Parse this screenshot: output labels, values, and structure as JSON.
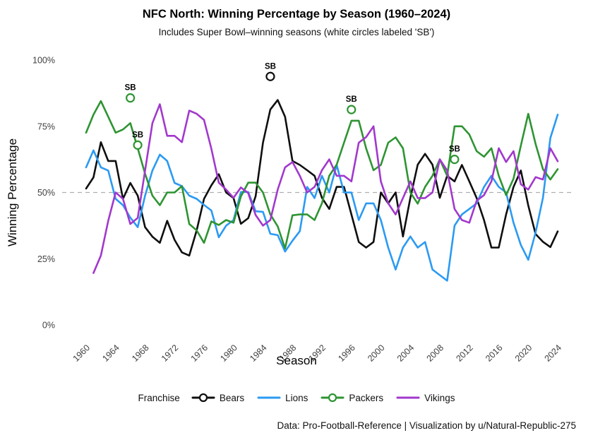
{
  "header": {
    "title": "NFC North: Winning Percentage by Season (1960–2024)",
    "subtitle": "Includes Super Bowl–winning seasons (white circles labeled 'SB')"
  },
  "axes": {
    "y_label": "Winning Percentage",
    "x_label": "Season",
    "y_ticks": [
      {
        "label": "0%",
        "value": 0
      },
      {
        "label": "25%",
        "value": 25
      },
      {
        "label": "50%",
        "value": 50
      },
      {
        "label": "75%",
        "value": 75
      },
      {
        "label": "100%",
        "value": 100
      }
    ],
    "x_ticks": [
      1960,
      1964,
      1968,
      1972,
      1976,
      1980,
      1984,
      1988,
      1992,
      1996,
      2000,
      2004,
      2008,
      2012,
      2016,
      2020,
      2024
    ],
    "reference_line": {
      "value": 50,
      "style": "dashed",
      "color": "#b0b0b0"
    }
  },
  "legend": {
    "title": "Franchise",
    "items": [
      {
        "label": "Bears",
        "color": "#0f0f0f",
        "has_circle": true
      },
      {
        "label": "Lions",
        "color": "#2b9af3",
        "has_circle": false
      },
      {
        "label": "Packers",
        "color": "#2e9432",
        "has_circle": true
      },
      {
        "label": "Vikings",
        "color": "#a238cd",
        "has_circle": false
      }
    ]
  },
  "caption": "Data: Pro-Football-Reference | Visualization by u/Natural-Republic-275",
  "chart_data": {
    "type": "line",
    "title": "NFC North: Winning Percentage by Season (1960–2024)",
    "xlabel": "Season",
    "ylabel": "Winning Percentage",
    "xlim": [
      1960,
      2024
    ],
    "ylim": [
      0,
      100
    ],
    "grid": "none",
    "legend_position": "bottom",
    "reference_line_y": 50,
    "x": [
      1960,
      1961,
      1962,
      1963,
      1964,
      1965,
      1966,
      1967,
      1968,
      1969,
      1970,
      1971,
      1972,
      1973,
      1974,
      1975,
      1976,
      1977,
      1978,
      1979,
      1980,
      1981,
      1982,
      1983,
      1984,
      1985,
      1986,
      1987,
      1988,
      1989,
      1990,
      1991,
      1992,
      1993,
      1994,
      1995,
      1996,
      1997,
      1998,
      1999,
      2000,
      2001,
      2002,
      2003,
      2004,
      2005,
      2006,
      2007,
      2008,
      2009,
      2010,
      2011,
      2012,
      2013,
      2014,
      2015,
      2016,
      2017,
      2018,
      2019,
      2020,
      2021,
      2022,
      2023,
      2024
    ],
    "series": [
      {
        "name": "Bears",
        "color": "#0f0f0f",
        "values": [
          51.5,
          55.7,
          69.0,
          61.9,
          61.9,
          47.6,
          53.6,
          48.8,
          36.9,
          33.3,
          31.0,
          39.3,
          32.1,
          27.4,
          26.2,
          35.7,
          47.6,
          52.7,
          56.9,
          50.0,
          47.9,
          38.2,
          40.3,
          48.6,
          68.8,
          81.3,
          84.9,
          78.6,
          61.9,
          60.4,
          58.4,
          56.3,
          48.0,
          43.8,
          52.1,
          52.1,
          41.7,
          31.3,
          29.2,
          31.3,
          50.0,
          45.9,
          50.0,
          33.4,
          48.0,
          60.5,
          64.6,
          60.5,
          48.0,
          56.3,
          54.2,
          60.4,
          54.2,
          47.9,
          39.6,
          29.2,
          29.2,
          41.7,
          52.1,
          58.3,
          45.1,
          34.3,
          31.4,
          29.4,
          35.3
        ]
      },
      {
        "name": "Lions",
        "color": "#2b9af3",
        "values": [
          59.5,
          65.9,
          59.5,
          58.3,
          47.6,
          45.2,
          40.5,
          36.9,
          48.8,
          58.3,
          64.3,
          61.9,
          53.6,
          52.4,
          48.8,
          47.6,
          45.3,
          43.2,
          33.1,
          37.5,
          39.6,
          50.2,
          50.2,
          42.9,
          42.7,
          34.4,
          33.9,
          27.7,
          31.8,
          35.4,
          52.1,
          47.9,
          56.3,
          50.0,
          60.4,
          50.0,
          50.0,
          39.6,
          45.9,
          45.9,
          39.6,
          29.2,
          20.9,
          29.2,
          33.4,
          29.2,
          31.3,
          20.9,
          18.8,
          16.7,
          37.5,
          41.7,
          43.8,
          45.9,
          52.1,
          56.3,
          52.1,
          50.0,
          38.6,
          30.2,
          24.6,
          34.9,
          48.0,
          70.6,
          79.4
        ]
      },
      {
        "name": "Packers",
        "color": "#2e9432",
        "values": [
          72.6,
          79.4,
          84.5,
          78.6,
          72.6,
          73.8,
          76.2,
          66.7,
          57.1,
          48.8,
          45.2,
          50.0,
          50.0,
          52.4,
          38.1,
          35.7,
          31.0,
          39.1,
          37.7,
          39.6,
          38.6,
          48.5,
          53.7,
          53.7,
          50.0,
          41.7,
          37.2,
          28.9,
          41.4,
          41.7,
          41.7,
          39.6,
          45.9,
          56.3,
          60.5,
          68.8,
          77.1,
          77.1,
          66.7,
          58.4,
          60.4,
          68.8,
          70.8,
          66.7,
          50.0,
          45.8,
          52.1,
          56.3,
          62.5,
          56.3,
          75.0,
          75.0,
          71.9,
          65.6,
          63.5,
          66.7,
          56.3,
          49.0,
          55.2,
          67.7,
          79.7,
          68.3,
          58.8,
          54.9,
          58.8
        ]
      },
      {
        "name": "Vikings",
        "color": "#a238cd",
        "values": [
          null,
          19.6,
          26.2,
          39.3,
          50.0,
          47.6,
          38.1,
          40.4,
          58.3,
          76.2,
          83.3,
          71.4,
          71.4,
          69.0,
          80.9,
          79.7,
          77.4,
          66.5,
          53.7,
          51.1,
          48.0,
          51.9,
          49.8,
          41.5,
          37.5,
          39.6,
          51.1,
          59.5,
          61.5,
          56.3,
          50.0,
          52.1,
          58.4,
          62.5,
          56.3,
          56.3,
          54.2,
          68.8,
          70.9,
          75.0,
          54.2,
          45.9,
          41.7,
          47.9,
          54.2,
          47.9,
          47.9,
          50.0,
          62.5,
          58.3,
          43.8,
          39.6,
          38.6,
          46.9,
          49.0,
          54.2,
          66.7,
          61.5,
          65.6,
          53.1,
          51.1,
          55.8,
          54.9,
          66.7,
          61.8
        ]
      }
    ],
    "sb_markers": [
      {
        "team": "Packers",
        "season": 1966,
        "value": 85.7,
        "label": "SB"
      },
      {
        "team": "Packers",
        "season": 1967,
        "value": 67.9,
        "label": "SB"
      },
      {
        "team": "Bears",
        "season": 1985,
        "value": 93.8,
        "label": "SB"
      },
      {
        "team": "Packers",
        "season": 1996,
        "value": 81.3,
        "label": "SB"
      },
      {
        "team": "Packers",
        "season": 2010,
        "value": 62.5,
        "label": "SB"
      }
    ]
  }
}
